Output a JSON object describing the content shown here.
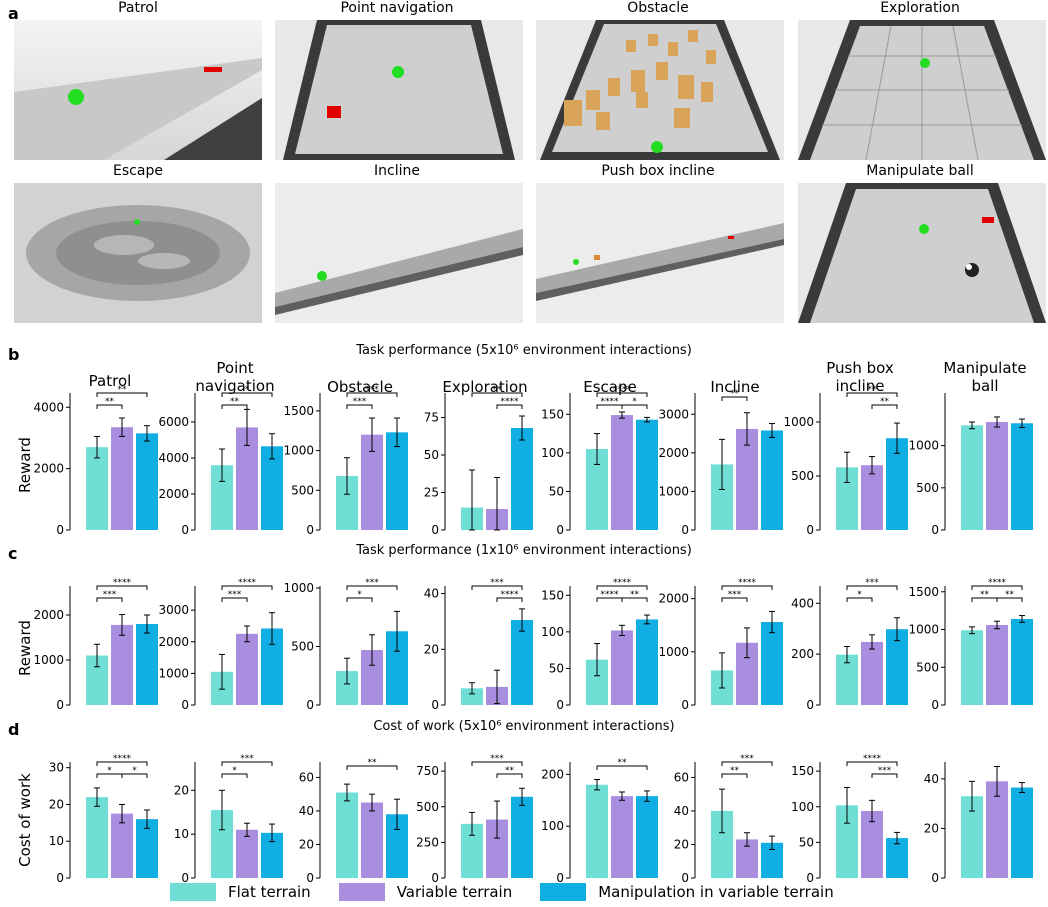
{
  "panels": {
    "a": "a",
    "b": "b",
    "c": "c",
    "d": "d"
  },
  "scenes": [
    {
      "title": "Patrol"
    },
    {
      "title": "Point navigation"
    },
    {
      "title": "Obstacle"
    },
    {
      "title": "Exploration"
    },
    {
      "title": "Escape"
    },
    {
      "title": "Incline"
    },
    {
      "title": "Push box incline"
    },
    {
      "title": "Manipulate ball"
    }
  ],
  "sections": {
    "b": "Task performance (5x10⁶ environment interactions)",
    "c": "Task performance (1x10⁶ environment interactions)",
    "d": "Cost of work (5x10⁶ environment interactions)"
  },
  "task_titles": [
    "Patrol",
    "Point\nnavigation",
    "Obstacle",
    "Exploration",
    "Escape",
    "Incline",
    "Push box\nincline",
    "Manipulate\nball"
  ],
  "legend": [
    {
      "label": "Flat terrain",
      "color": "#6fdfd6"
    },
    {
      "label": "Variable terrain",
      "color": "#a98ee0"
    },
    {
      "label": "Manipulation in variable terrain",
      "color": "#10aee3"
    }
  ],
  "chart_data": [
    {
      "type": "bar",
      "row": "b",
      "ylabel": "Reward",
      "charts": [
        {
          "task": "Patrol",
          "ylim": [
            0,
            4400
          ],
          "yticks": [
            0,
            2000,
            4000
          ],
          "values": [
            2700,
            3350,
            3150
          ],
          "err": [
            350,
            300,
            250
          ],
          "sig": [
            [
              "0-1",
              "**"
            ],
            [
              "0-2",
              "**"
            ]
          ]
        },
        {
          "task": "Point navigation",
          "ylim": [
            0,
            7500
          ],
          "yticks": [
            0,
            2000,
            4000,
            6000
          ],
          "values": [
            3600,
            5700,
            4650
          ],
          "err": [
            900,
            1000,
            700
          ],
          "sig": [
            [
              "0-1",
              "**"
            ],
            [
              "0-2",
              "*"
            ]
          ]
        },
        {
          "task": "Obstacle",
          "ylim": [
            0,
            1700
          ],
          "yticks": [
            0,
            500,
            1000,
            1500
          ],
          "values": [
            680,
            1200,
            1230
          ],
          "err": [
            230,
            210,
            180
          ],
          "sig": [
            [
              "0-1",
              "***"
            ],
            [
              "0-2",
              "***"
            ]
          ]
        },
        {
          "task": "Exploration",
          "ylim": [
            0,
            90
          ],
          "yticks": [
            0,
            25,
            50,
            75
          ],
          "values": [
            15,
            14,
            68
          ],
          "err": [
            25,
            21,
            8
          ],
          "sig": [
            [
              "1-2",
              "****"
            ],
            [
              "0-2",
              "**"
            ]
          ]
        },
        {
          "task": "Escape",
          "ylim": [
            0,
            175
          ],
          "yticks": [
            0,
            50,
            100,
            150
          ],
          "values": [
            105,
            149,
            143
          ],
          "err": [
            20,
            4,
            3
          ],
          "sig": [
            [
              "0-1",
              "****"
            ],
            [
              "1-2",
              "*"
            ],
            [
              "0-2",
              "****"
            ]
          ]
        },
        {
          "task": "Incline",
          "ylim": [
            0,
            3500
          ],
          "yticks": [
            0,
            1000,
            2000,
            3000
          ],
          "values": [
            1700,
            2620,
            2580
          ],
          "err": [
            650,
            420,
            180
          ],
          "sig": [
            [
              "0-1",
              "**"
            ]
          ]
        },
        {
          "task": "Push box incline",
          "ylim": [
            0,
            1250
          ],
          "yticks": [
            0,
            500,
            1000
          ],
          "values": [
            580,
            600,
            850
          ],
          "err": [
            140,
            80,
            140
          ],
          "sig": [
            [
              "1-2",
              "**"
            ],
            [
              "0-2",
              "**"
            ]
          ]
        },
        {
          "task": "Manipulate ball",
          "ylim": [
            0,
            1600
          ],
          "yticks": [
            0,
            500,
            1000
          ],
          "values": [
            1240,
            1280,
            1265
          ],
          "err": [
            40,
            60,
            50
          ],
          "sig": []
        }
      ]
    },
    {
      "type": "bar",
      "row": "c",
      "ylabel": "Reward",
      "charts": [
        {
          "task": "Patrol",
          "ylim": [
            0,
            2600
          ],
          "yticks": [
            0,
            1000,
            2000
          ],
          "values": [
            1100,
            1780,
            1800
          ],
          "err": [
            250,
            230,
            200
          ],
          "sig": [
            [
              "0-1",
              "***"
            ],
            [
              "0-2",
              "****"
            ]
          ]
        },
        {
          "task": "Point navigation",
          "ylim": [
            0,
            3700
          ],
          "yticks": [
            0,
            1000,
            2000,
            3000
          ],
          "values": [
            1050,
            2250,
            2420
          ],
          "err": [
            550,
            250,
            500
          ],
          "sig": [
            [
              "0-1",
              "***"
            ],
            [
              "0-2",
              "****"
            ]
          ]
        },
        {
          "task": "Obstacle",
          "ylim": [
            0,
            1000
          ],
          "yticks": [
            0,
            500,
            1000
          ],
          "values": [
            290,
            470,
            630
          ],
          "err": [
            110,
            130,
            170
          ],
          "sig": [
            [
              "0-1",
              "*"
            ],
            [
              "0-2",
              "***"
            ]
          ]
        },
        {
          "task": "Exploration",
          "ylim": [
            0,
            42
          ],
          "yticks": [
            0,
            20,
            40
          ],
          "values": [
            6,
            6.5,
            30.5
          ],
          "err": [
            2,
            6,
            4
          ],
          "sig": [
            [
              "1-2",
              "****"
            ],
            [
              "0-2",
              "***"
            ]
          ]
        },
        {
          "task": "Escape",
          "ylim": [
            0,
            160
          ],
          "yticks": [
            0,
            50,
            100,
            150
          ],
          "values": [
            62,
            102,
            117
          ],
          "err": [
            22,
            7,
            6
          ],
          "sig": [
            [
              "0-1",
              "****"
            ],
            [
              "1-2",
              "**"
            ],
            [
              "0-2",
              "****"
            ]
          ]
        },
        {
          "task": "Incline",
          "ylim": [
            0,
            2200
          ],
          "yticks": [
            0,
            1000,
            2000
          ],
          "values": [
            650,
            1170,
            1560
          ],
          "err": [
            330,
            280,
            200
          ],
          "sig": [
            [
              "0-1",
              "***"
            ],
            [
              "0-2",
              "****"
            ]
          ]
        },
        {
          "task": "Push box incline",
          "ylim": [
            0,
            460
          ],
          "yticks": [
            0,
            200,
            400
          ],
          "values": [
            198,
            248,
            298
          ],
          "err": [
            32,
            28,
            45
          ],
          "sig": [
            [
              "0-1",
              "*"
            ],
            [
              "0-2",
              "***"
            ]
          ]
        },
        {
          "task": "Manipulate ball",
          "ylim": [
            0,
            1550
          ],
          "yticks": [
            0,
            500,
            1000,
            1500
          ],
          "values": [
            990,
            1060,
            1140
          ],
          "err": [
            45,
            50,
            45
          ],
          "sig": [
            [
              "0-1",
              "**"
            ],
            [
              "1-2",
              "**"
            ],
            [
              "0-2",
              "****"
            ]
          ]
        }
      ]
    },
    {
      "type": "bar",
      "row": "d",
      "ylabel": "Cost of work",
      "charts": [
        {
          "task": "Patrol",
          "ylim": [
            0,
            31
          ],
          "yticks": [
            0,
            10,
            20,
            30
          ],
          "values": [
            22,
            17.5,
            16
          ],
          "err": [
            2.5,
            2.5,
            2.5
          ],
          "sig": [
            [
              "0-1",
              "*"
            ],
            [
              "1-2",
              "*"
            ],
            [
              "0-2",
              "****"
            ]
          ]
        },
        {
          "task": "Point navigation",
          "ylim": [
            0,
            26
          ],
          "yticks": [
            0,
            10,
            20
          ],
          "values": [
            15.5,
            11,
            10.3
          ],
          "err": [
            4.5,
            1.5,
            2
          ],
          "sig": [
            [
              "0-1",
              "*"
            ],
            [
              "0-2",
              "***"
            ]
          ]
        },
        {
          "task": "Obstacle",
          "ylim": [
            0,
            68
          ],
          "yticks": [
            0,
            20,
            40,
            60
          ],
          "values": [
            51,
            45,
            38
          ],
          "err": [
            5,
            5,
            9
          ],
          "sig": [
            [
              "0-2",
              "**"
            ]
          ]
        },
        {
          "task": "Exploration",
          "ylim": [
            0,
            800
          ],
          "yticks": [
            0,
            250,
            500,
            750
          ],
          "values": [
            380,
            410,
            570
          ],
          "err": [
            80,
            130,
            60
          ],
          "sig": [
            [
              "1-2",
              "**"
            ],
            [
              "0-2",
              "***"
            ]
          ]
        },
        {
          "task": "Escape",
          "ylim": [
            0,
            220
          ],
          "yticks": [
            0,
            100,
            200
          ],
          "values": [
            180,
            158,
            158
          ],
          "err": [
            10,
            8,
            10
          ],
          "sig": [
            [
              "0-2",
              "**"
            ]
          ]
        },
        {
          "task": "Incline",
          "ylim": [
            0,
            68
          ],
          "yticks": [
            0,
            20,
            40,
            60
          ],
          "values": [
            40,
            23,
            21
          ],
          "err": [
            13,
            4,
            4
          ],
          "sig": [
            [
              "0-1",
              "**"
            ],
            [
              "0-2",
              "***"
            ]
          ]
        },
        {
          "task": "Push box incline",
          "ylim": [
            0,
            160
          ],
          "yticks": [
            0,
            50,
            100,
            150
          ],
          "values": [
            102,
            94,
            56
          ],
          "err": [
            25,
            15,
            8
          ],
          "sig": [
            [
              "1-2",
              "***"
            ],
            [
              "0-2",
              "****"
            ]
          ]
        },
        {
          "task": "Manipulate ball",
          "ylim": [
            0,
            46
          ],
          "yticks": [
            0,
            20,
            40
          ],
          "values": [
            33,
            39,
            36.5
          ],
          "err": [
            6,
            6,
            2
          ],
          "sig": []
        }
      ]
    }
  ]
}
